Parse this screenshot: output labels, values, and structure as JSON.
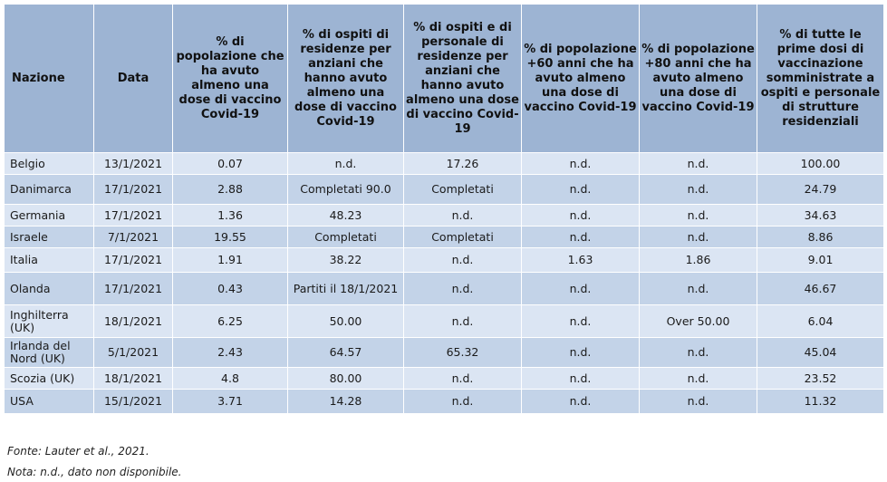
{
  "headers": [
    "Nazione",
    "Data",
    "% di popolazione che ha avuto almeno una dose di vaccino Covid-19",
    "% di ospiti di residenze per anziani che hanno avuto almeno una dose di vaccino Covid-19",
    "% di ospiti e di personale di residenze per anziani che hanno avuto almeno una dose di vaccino Covid-19",
    "% di popolazione +60 anni che ha avuto almeno una dose di vaccino Covid-19",
    "% di popolazione +80 anni che ha avuto almeno una dose di vaccino Covid-19",
    "% di tutte le prime dosi di vaccinazione somministrate a ospiti e personale di strutture residenziali"
  ],
  "rows": [
    [
      "Belgio",
      "13/1/2021",
      "0.07",
      "n.d.",
      "17.26",
      "n.d.",
      "n.d.",
      "100.00"
    ],
    [
      "Danimarca",
      "17/1/2021",
      "2.88",
      "Completati 90.0",
      "Completati",
      "n.d.",
      "n.d.",
      "24.79"
    ],
    [
      "Germania",
      "17/1/2021",
      "1.36",
      "48.23",
      "n.d.",
      "n.d.",
      "n.d.",
      "34.63"
    ],
    [
      "Israele",
      "7/1/2021",
      "19.55",
      "Completati",
      "Completati",
      "n.d.",
      "n.d.",
      "8.86"
    ],
    [
      "Italia",
      "17/1/2021",
      "1.91",
      "38.22",
      "n.d.",
      "1.63",
      "1.86",
      "9.01"
    ],
    [
      "Olanda",
      "17/1/2021",
      "0.43",
      "Partiti il 18/1/2021",
      "n.d.",
      "n.d.",
      "n.d.",
      "46.67"
    ],
    [
      "Inghilterra (UK)",
      "18/1/2021",
      "6.25",
      "50.00",
      "n.d.",
      "n.d.",
      "Over 50.00",
      "6.04"
    ],
    [
      "Irlanda del Nord (UK)",
      "5/1/2021",
      "2.43",
      "64.57",
      "65.32",
      "n.d.",
      "n.d.",
      "45.04"
    ],
    [
      "Scozia (UK)",
      "18/1/2021",
      "4.8",
      "80.00",
      "n.d.",
      "n.d.",
      "n.d.",
      "23.52"
    ],
    [
      "USA",
      "15/1/2021",
      "3.71",
      "14.28",
      "n.d.",
      "n.d.",
      "n.d.",
      "11.32"
    ]
  ],
  "source": "Fonte: Lauter et al., 2021.",
  "note": "Nota: n.d., dato non disponibile."
}
